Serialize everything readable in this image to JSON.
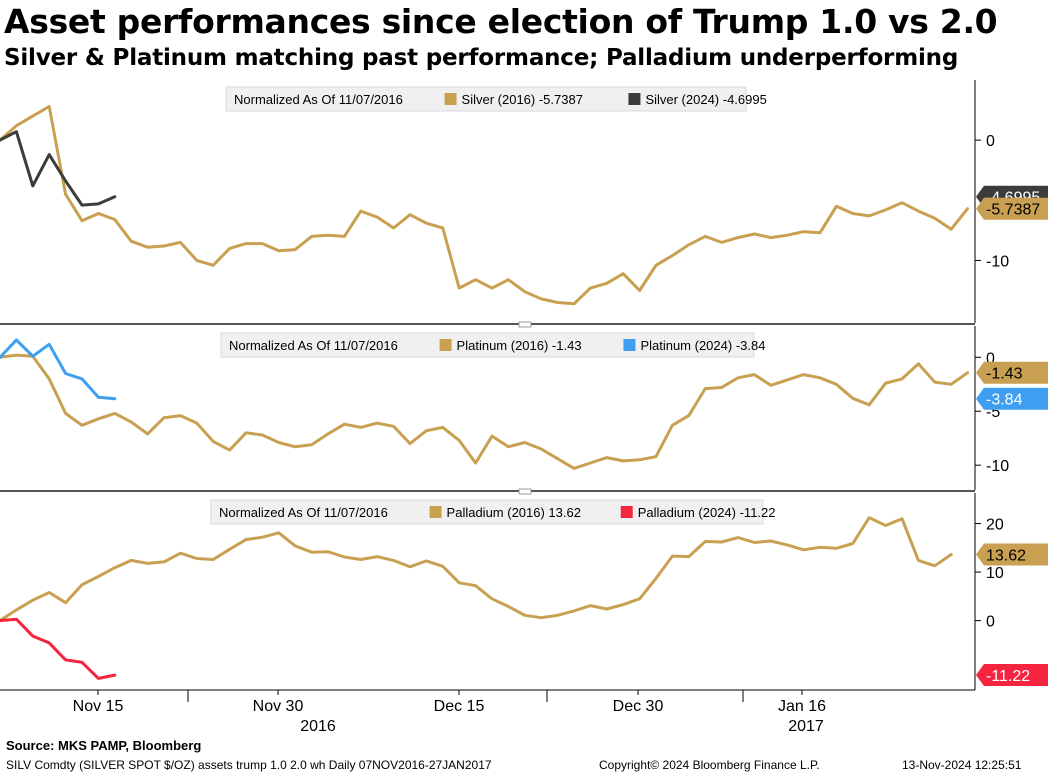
{
  "header": {
    "title": "Asset performances since election of Trump 1.0 vs 2.0",
    "subtitle": "Silver & Platinum matching past performance; Palladium underperforming"
  },
  "colors": {
    "series_2016": "#c9a051",
    "silver_2024": "#3c3c3c",
    "platinum_2024": "#3e9ff0",
    "palladium_2024": "#f5253f"
  },
  "chart_data": [
    {
      "type": "line",
      "legend": {
        "prefix": "Normalized As Of 11/07/2016",
        "entries": [
          "Silver (2016) -5.7387",
          "Silver (2024) -4.6995"
        ]
      },
      "yticks": [
        0,
        -10
      ],
      "ytick_labels": [
        "0",
        "-10"
      ],
      "ylim": [
        -15.2,
        5.0
      ],
      "series": [
        {
          "name": "Silver (2016)",
          "last_label": "-5.7387",
          "values": [
            0,
            1.2,
            2.0,
            2.8,
            -4.5,
            -6.7,
            -6.1,
            -6.6,
            -8.4,
            -8.9,
            -8.8,
            -8.5,
            -10.0,
            -10.4,
            -9.0,
            -8.6,
            -8.6,
            -9.2,
            -9.1,
            -8.0,
            -7.9,
            -8.0,
            -5.9,
            -6.4,
            -7.3,
            -6.2,
            -6.9,
            -7.3,
            -12.3,
            -11.6,
            -12.3,
            -11.6,
            -12.6,
            -13.2,
            -13.5,
            -13.6,
            -12.3,
            -11.9,
            -11.1,
            -12.5,
            -10.4,
            -9.6,
            -8.7,
            -8.0,
            -8.5,
            -8.1,
            -7.8,
            -8.1,
            -7.9,
            -7.6,
            -7.7,
            -5.5,
            -6.1,
            -6.3,
            -5.8,
            -5.2,
            -5.9,
            -6.5,
            -7.4,
            -5.7
          ]
        },
        {
          "name": "Silver (2024)",
          "last_label": "-4.6995",
          "values": [
            0,
            0.7,
            -3.8,
            -1.2,
            -3.4,
            -5.4,
            -5.3,
            -4.7
          ]
        }
      ]
    },
    {
      "type": "line",
      "legend": {
        "prefix": "Normalized As Of 11/07/2016",
        "entries": [
          "Platinum (2016) -1.43",
          "Platinum (2024) -3.84"
        ]
      },
      "yticks": [
        0,
        -5,
        -10
      ],
      "ytick_labels": [
        "0",
        "-5",
        "-10"
      ],
      "ylim": [
        -12.3,
        2.9
      ],
      "series": [
        {
          "name": "Platinum (2016)",
          "last_label": "-1.43",
          "values": [
            0,
            0.2,
            0.1,
            -2.0,
            -5.2,
            -6.3,
            -5.7,
            -5.2,
            -6.0,
            -7.1,
            -5.6,
            -5.4,
            -6.1,
            -7.8,
            -8.6,
            -7.0,
            -7.2,
            -7.9,
            -8.3,
            -8.1,
            -7.1,
            -6.2,
            -6.5,
            -6.1,
            -6.4,
            -8.0,
            -6.8,
            -6.5,
            -7.7,
            -9.8,
            -7.3,
            -8.3,
            -7.9,
            -8.5,
            -9.4,
            -10.3,
            -9.8,
            -9.3,
            -9.6,
            -9.5,
            -9.2,
            -6.3,
            -5.4,
            -2.9,
            -2.8,
            -1.9,
            -1.6,
            -2.6,
            -2.1,
            -1.6,
            -1.9,
            -2.5,
            -3.8,
            -4.4,
            -2.4,
            -2.0,
            -0.6,
            -2.3,
            -2.5,
            -1.43
          ]
        },
        {
          "name": "Platinum (2024)",
          "last_label": "-3.84",
          "values": [
            0,
            1.6,
            0.1,
            1.2,
            -1.5,
            -2.0,
            -3.7,
            -3.84
          ]
        }
      ]
    },
    {
      "type": "line",
      "legend": {
        "prefix": "Normalized As Of 11/07/2016",
        "entries": [
          "Palladium (2016) 13.62",
          "Palladium (2024) -11.22"
        ]
      },
      "yticks": [
        20,
        10,
        0
      ],
      "ytick_labels": [
        "20",
        "10",
        "0"
      ],
      "ylim": [
        -14.3,
        26.3
      ],
      "series": [
        {
          "name": "Palladium (2016)",
          "last_label": "13.62",
          "values": [
            0,
            2.2,
            4.2,
            5.8,
            3.7,
            7.4,
            9.1,
            10.9,
            12.4,
            11.8,
            12.1,
            13.9,
            12.8,
            12.6,
            14.7,
            16.7,
            17.2,
            18.1,
            15.4,
            14.1,
            14.2,
            13.1,
            12.6,
            13.2,
            12.4,
            11.1,
            12.3,
            11.2,
            7.8,
            7.2,
            4.5,
            2.9,
            1.1,
            0.6,
            1.1,
            2.0,
            3.1,
            2.4,
            3.3,
            4.5,
            8.7,
            13.3,
            13.2,
            16.3,
            16.2,
            17.1,
            16.1,
            16.4,
            15.6,
            14.6,
            15.1,
            14.9,
            15.9,
            21.2,
            19.6,
            21.0,
            12.4,
            11.3,
            13.62
          ]
        },
        {
          "name": "Palladium (2024)",
          "last_label": "-11.22",
          "values": [
            0,
            0.3,
            -3.2,
            -4.6,
            -8.1,
            -8.6,
            -11.9,
            -11.22
          ]
        }
      ]
    }
  ],
  "x_axis": {
    "ticks": [
      "Nov 15",
      "Nov 30",
      "Dec 15",
      "Dec 30",
      "Jan 16"
    ],
    "years": [
      "2016",
      "2017"
    ]
  },
  "footer": {
    "source": "Source: MKS PAMP, Bloomberg",
    "left": "SILV Comdty (SILVER SPOT $/OZ) assets trump 1.0 2.0 wh   Daily 07NOV2016-27JAN2017",
    "center": "Copyright© 2024 Bloomberg Finance L.P.",
    "right": "13-Nov-2024 12:25:51"
  }
}
